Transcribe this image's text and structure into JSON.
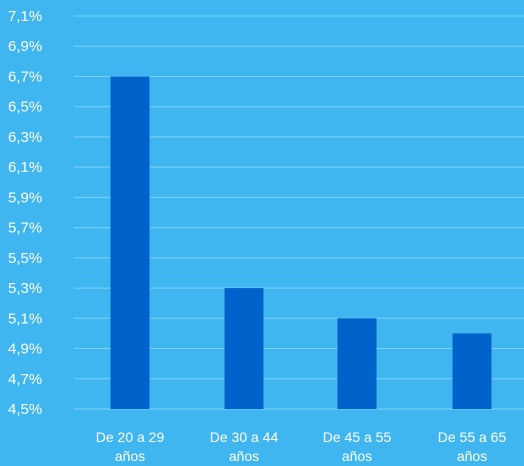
{
  "chart_data": {
    "type": "bar",
    "categories": [
      [
        "De 20 a 29",
        "años"
      ],
      [
        "De 30 a 44",
        "años"
      ],
      [
        "De 45 a 55",
        "años"
      ],
      [
        "De 55 a 65",
        "años"
      ]
    ],
    "values": [
      6.7,
      5.3,
      5.1,
      5.0
    ],
    "ylim": [
      4.5,
      7.1
    ],
    "y_ticks": [
      "7,1%",
      "6,9%",
      "6,7%",
      "6,5%",
      "6,3%",
      "6,1%",
      "5,9%",
      "5,7%",
      "5,5%",
      "5,3%",
      "5,1%",
      "4,9%",
      "4,7%",
      "4,5%"
    ],
    "y_tick_values": [
      7.1,
      6.9,
      6.7,
      6.5,
      6.3,
      6.1,
      5.9,
      5.7,
      5.5,
      5.3,
      5.1,
      4.9,
      4.7,
      4.5
    ],
    "grid": true,
    "legend": "none",
    "colors": {
      "background": "#3FB6EF",
      "bar": "#0063CC",
      "grid": "#7FD0F6",
      "text": "#ffffff"
    }
  }
}
